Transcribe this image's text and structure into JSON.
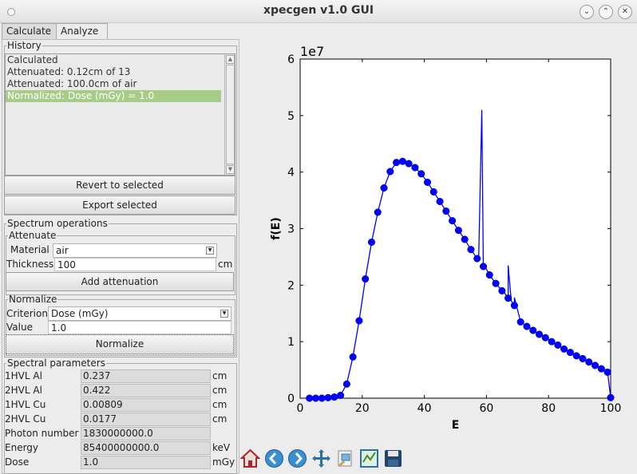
{
  "window": {
    "title": "xpecgen v1.0 GUI"
  },
  "tabs": [
    {
      "label": "Calculate"
    },
    {
      "label": "Analyze"
    }
  ],
  "history": {
    "legend": "History",
    "items": [
      "Calculated",
      "Attenuated: 0.12cm of 13",
      "Attenuated: 100.0cm of air",
      "Normalized: Dose (mGy) = 1.0"
    ],
    "selected_index": 3,
    "revert_label": "Revert to selected",
    "export_label": "Export selected"
  },
  "spectrum_ops": {
    "legend": "Spectrum operations",
    "attenuate": {
      "legend": "Attenuate",
      "material_label": "Material",
      "material_value": "air",
      "thickness_label": "Thickness",
      "thickness_value": "100",
      "thickness_unit": "cm",
      "add_label": "Add attenuation"
    },
    "normalize": {
      "legend": "Normalize",
      "criterion_label": "Criterion",
      "criterion_value": "Dose (mGy)",
      "value_label": "Value",
      "value_value": "1.0",
      "normalize_label": "Normalize"
    }
  },
  "spectral_params": {
    "legend": "Spectral parameters",
    "rows": [
      {
        "label": "1HVL Al",
        "value": "0.237",
        "unit": "cm"
      },
      {
        "label": "2HVL Al",
        "value": "0.422",
        "unit": "cm"
      },
      {
        "label": "1HVL Cu",
        "value": "0.00809",
        "unit": "cm"
      },
      {
        "label": "2HVL Cu",
        "value": "0.0177",
        "unit": "cm"
      },
      {
        "label": "Photon number",
        "value": "1830000000.0",
        "unit": ""
      },
      {
        "label": "Energy",
        "value": "85400000000.0",
        "unit": "keV"
      },
      {
        "label": "Dose",
        "value": "1.0",
        "unit": "mGy"
      }
    ]
  },
  "toolbar": {
    "icons": [
      "home-icon",
      "back-icon",
      "forward-icon",
      "pan-icon",
      "zoom-icon",
      "configure-subplots-icon",
      "save-icon"
    ]
  },
  "colors": {
    "series": "#0000ff",
    "selection": "#a7cc87"
  },
  "chart_data": {
    "type": "line",
    "xlabel": "E",
    "ylabel": "f(E)",
    "y_multiplier": "1e7",
    "xlim": [
      0,
      100
    ],
    "ylim": [
      0,
      6
    ],
    "xticks": [
      0,
      20,
      40,
      60,
      80,
      100
    ],
    "yticks": [
      0,
      1,
      2,
      3,
      4,
      5,
      6
    ],
    "grid": false,
    "series": [
      {
        "marker": "circle",
        "x": [
          3,
          5,
          7,
          9,
          11,
          13,
          15,
          17,
          19,
          21,
          23,
          25,
          27,
          29,
          31,
          33,
          35,
          37,
          39,
          41,
          43,
          45,
          47,
          49,
          51,
          53,
          55,
          57,
          59,
          61,
          63,
          65,
          67,
          69,
          71,
          73,
          75,
          77,
          79,
          81,
          83,
          85,
          87,
          89,
          91,
          93,
          95,
          97,
          99,
          100
        ],
        "y": [
          0,
          0,
          0,
          0.01,
          0.02,
          0.05,
          0.25,
          0.73,
          1.37,
          2.11,
          2.76,
          3.29,
          3.72,
          4.01,
          4.17,
          4.19,
          4.15,
          4.08,
          3.97,
          3.82,
          3.65,
          3.48,
          3.31,
          3.14,
          2.97,
          2.81,
          2.63,
          2.47,
          2.33,
          2.18,
          2.03,
          1.9,
          1.77,
          1.64,
          1.35,
          1.27,
          1.2,
          1.13,
          1.07,
          1,
          0.94,
          0.87,
          0.81,
          0.75,
          0.7,
          0.64,
          0.58,
          0.52,
          0.46,
          0.01
        ]
      }
    ],
    "line_extra_x": [
      57.5,
      58.5,
      59.5,
      66,
      67,
      68,
      69
    ],
    "line_extra_y": [
      2.5,
      5.1,
      2.33,
      1.85,
      2.35,
      1.72,
      1.78
    ]
  }
}
